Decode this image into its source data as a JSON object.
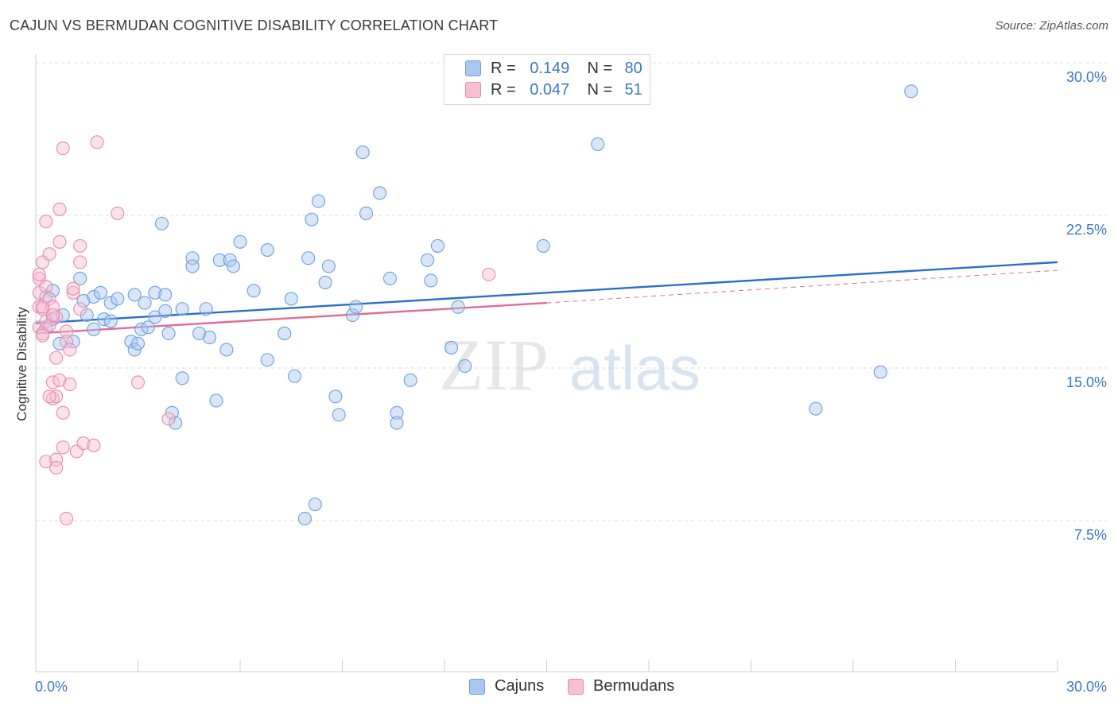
{
  "title": "CAJUN VS BERMUDAN COGNITIVE DISABILITY CORRELATION CHART",
  "source": "Source: ZipAtlas.com",
  "watermark": {
    "zip": "ZIP",
    "atlas": "atlas"
  },
  "legend": {
    "rows": [
      {
        "r_label": "R =",
        "r_value": "0.149",
        "n_label": "N =",
        "n_value": "80"
      },
      {
        "r_label": "R =",
        "r_value": "0.047",
        "n_label": "N =",
        "n_value": "51"
      }
    ]
  },
  "bottom_legend": {
    "cajuns": "Cajuns",
    "bermudans": "Bermudans"
  },
  "colors": {
    "cajun_fill": "#a9c8f0",
    "cajun_stroke": "#6a9fdc",
    "cajun_line": "#2a6fcc",
    "bermudan_fill": "#f7bfd2",
    "bermudan_stroke": "#e88aab",
    "bermudan_line": "#e06a98",
    "tick_label": "#3a78c8",
    "grid": "#dddddd"
  },
  "chart_data": {
    "type": "scatter",
    "title": "CAJUN VS BERMUDAN COGNITIVE DISABILITY CORRELATION CHART",
    "xlabel": "",
    "ylabel": "Cognitive Disability",
    "xlim": [
      0,
      30
    ],
    "ylim": [
      0,
      31
    ],
    "x_tick_labels": [
      "0.0%",
      "30.0%"
    ],
    "y_ticks": [
      7.5,
      15.0,
      22.5,
      30.0
    ],
    "y_tick_labels": [
      "7.5%",
      "15.0%",
      "22.5%",
      "30.0%"
    ],
    "grid": true,
    "legend_position": "top-center",
    "series": [
      {
        "name": "Cajuns",
        "r": 0.149,
        "n": 80,
        "trend": {
          "x": [
            0,
            30
          ],
          "y": [
            17.2,
            20.2
          ]
        },
        "points": [
          [
            0.3,
            17.0
          ],
          [
            0.3,
            18.5
          ],
          [
            0.5,
            18.8
          ],
          [
            0.5,
            17.4
          ],
          [
            0.7,
            16.2
          ],
          [
            0.8,
            17.6
          ],
          [
            1.1,
            16.3
          ],
          [
            1.3,
            19.4
          ],
          [
            1.4,
            18.3
          ],
          [
            1.7,
            16.9
          ],
          [
            1.5,
            17.6
          ],
          [
            1.7,
            18.5
          ],
          [
            2.0,
            17.4
          ],
          [
            1.9,
            18.7
          ],
          [
            2.2,
            17.3
          ],
          [
            2.2,
            18.2
          ],
          [
            2.4,
            18.4
          ],
          [
            2.8,
            16.3
          ],
          [
            2.9,
            15.9
          ],
          [
            3.0,
            16.2
          ],
          [
            3.1,
            16.9
          ],
          [
            3.3,
            17.0
          ],
          [
            2.9,
            18.6
          ],
          [
            3.2,
            18.2
          ],
          [
            3.5,
            17.5
          ],
          [
            3.5,
            18.7
          ],
          [
            3.7,
            22.1
          ],
          [
            3.8,
            18.6
          ],
          [
            3.8,
            17.8
          ],
          [
            3.9,
            16.7
          ],
          [
            4.0,
            12.8
          ],
          [
            4.1,
            12.3
          ],
          [
            4.3,
            17.9
          ],
          [
            4.6,
            20.4
          ],
          [
            4.6,
            20.0
          ],
          [
            4.8,
            16.7
          ],
          [
            5.0,
            17.9
          ],
          [
            5.1,
            16.5
          ],
          [
            5.3,
            13.4
          ],
          [
            5.4,
            20.3
          ],
          [
            5.6,
            15.9
          ],
          [
            5.7,
            20.3
          ],
          [
            5.8,
            20.0
          ],
          [
            6.0,
            21.2
          ],
          [
            6.4,
            18.8
          ],
          [
            6.8,
            20.8
          ],
          [
            6.8,
            15.4
          ],
          [
            7.3,
            16.7
          ],
          [
            7.5,
            18.4
          ],
          [
            7.6,
            14.6
          ],
          [
            7.9,
            7.6
          ],
          [
            8.0,
            20.4
          ],
          [
            8.1,
            22.3
          ],
          [
            8.2,
            8.3
          ],
          [
            8.3,
            23.2
          ],
          [
            8.5,
            19.2
          ],
          [
            8.6,
            20.0
          ],
          [
            8.8,
            13.6
          ],
          [
            8.9,
            12.7
          ],
          [
            9.3,
            17.6
          ],
          [
            9.4,
            18.0
          ],
          [
            9.6,
            25.6
          ],
          [
            9.7,
            22.6
          ],
          [
            10.1,
            23.6
          ],
          [
            10.4,
            19.4
          ],
          [
            10.6,
            12.8
          ],
          [
            10.6,
            12.3
          ],
          [
            11.0,
            14.4
          ],
          [
            11.5,
            20.3
          ],
          [
            11.6,
            19.3
          ],
          [
            11.8,
            21.0
          ],
          [
            12.2,
            16.0
          ],
          [
            12.4,
            18.0
          ],
          [
            12.6,
            15.1
          ],
          [
            14.9,
            21.0
          ],
          [
            16.5,
            26.0
          ],
          [
            22.9,
            13.0
          ],
          [
            24.8,
            14.8
          ],
          [
            25.7,
            28.6
          ],
          [
            4.3,
            14.5
          ]
        ]
      },
      {
        "name": "Bermudans",
        "r": 0.047,
        "n": 51,
        "trend": {
          "x": [
            0,
            15
          ],
          "y": [
            16.7,
            18.2
          ],
          "dashed_to": {
            "x": 30,
            "y": 19.8
          }
        },
        "points": [
          [
            0.1,
            19.4
          ],
          [
            0.1,
            18.7
          ],
          [
            0.1,
            18.0
          ],
          [
            0.1,
            17.0
          ],
          [
            0.1,
            19.6
          ],
          [
            0.2,
            16.7
          ],
          [
            0.2,
            17.9
          ],
          [
            0.2,
            20.2
          ],
          [
            0.3,
            19.0
          ],
          [
            0.3,
            22.2
          ],
          [
            0.3,
            17.3
          ],
          [
            0.3,
            10.4
          ],
          [
            0.4,
            18.4
          ],
          [
            0.4,
            17.1
          ],
          [
            0.4,
            20.6
          ],
          [
            0.5,
            18.0
          ],
          [
            0.5,
            13.5
          ],
          [
            0.5,
            14.3
          ],
          [
            0.6,
            17.5
          ],
          [
            0.6,
            15.5
          ],
          [
            0.6,
            10.5
          ],
          [
            0.6,
            10.1
          ],
          [
            0.6,
            13.6
          ],
          [
            0.7,
            21.2
          ],
          [
            0.7,
            22.8
          ],
          [
            0.7,
            14.4
          ],
          [
            0.8,
            11.1
          ],
          [
            0.8,
            12.8
          ],
          [
            0.8,
            25.8
          ],
          [
            0.9,
            16.8
          ],
          [
            0.9,
            16.3
          ],
          [
            0.9,
            7.6
          ],
          [
            1.0,
            15.9
          ],
          [
            1.0,
            14.2
          ],
          [
            1.1,
            18.7
          ],
          [
            1.1,
            18.9
          ],
          [
            1.2,
            10.9
          ],
          [
            1.3,
            17.9
          ],
          [
            1.3,
            20.2
          ],
          [
            1.3,
            21.0
          ],
          [
            1.4,
            11.3
          ],
          [
            1.7,
            11.2
          ],
          [
            1.8,
            26.1
          ],
          [
            2.4,
            22.6
          ],
          [
            3.0,
            14.3
          ],
          [
            3.9,
            12.5
          ],
          [
            13.3,
            19.6
          ],
          [
            0.2,
            18.0
          ],
          [
            0.4,
            13.6
          ],
          [
            0.5,
            17.6
          ],
          [
            0.2,
            16.6
          ]
        ]
      }
    ]
  }
}
